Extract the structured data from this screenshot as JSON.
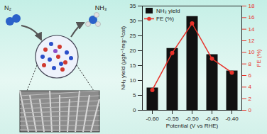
{
  "chart_data": {
    "type": "bar",
    "x_label": "Potential (V vs RHE)",
    "y_label": "NH₃ yield (μgh⁻¹mg⁻¹cat)",
    "y2_label": "FE (%)",
    "categories": [
      "-0.60",
      "-0.55",
      "-0.50",
      "-0.45",
      "-0.40"
    ],
    "series": [
      {
        "name": "NH₃ yield",
        "type": "bar",
        "color": "#111111",
        "values": [
          7.5,
          20.8,
          31.5,
          18.7,
          13.2
        ]
      },
      {
        "name": "FE (%)",
        "type": "line",
        "axis": "y2",
        "color": "#e8322a",
        "marker": "circle",
        "values": [
          3.5,
          9.9,
          15.0,
          8.9,
          6.5
        ]
      }
    ],
    "ylim": [
      0,
      35
    ],
    "yticks": [
      0,
      5,
      10,
      15,
      20,
      25,
      30,
      35
    ],
    "y2lim": [
      0,
      18
    ],
    "y2ticks": [
      0,
      2,
      4,
      6,
      8,
      10,
      12,
      14,
      16,
      18
    ],
    "legend": "upper left"
  },
  "illustration": {
    "reactant": "N₂",
    "product": "NH₃"
  }
}
